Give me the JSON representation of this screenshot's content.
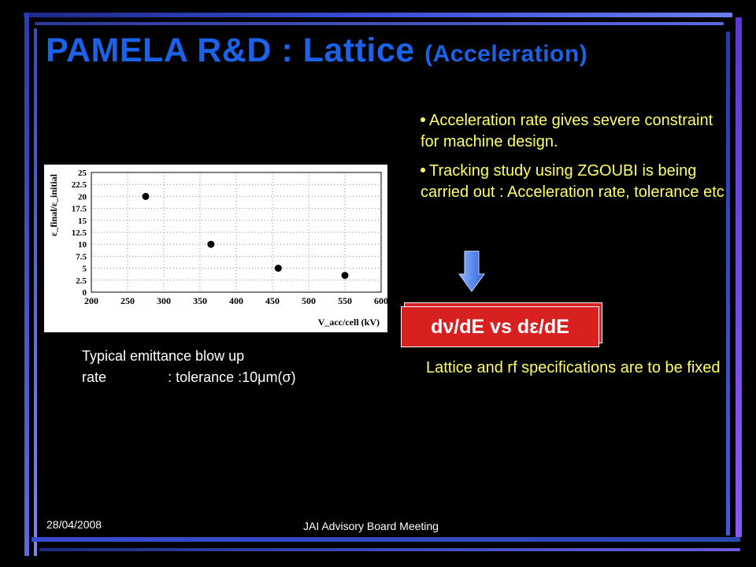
{
  "slide": {
    "title_main": "PAMELA R&D : Lattice",
    "title_sub": "(Acceleration)",
    "bullets": [
      "Acceleration rate gives severe constraint for machine design.",
      "Tracking study using ZGOUBI is being carried out : Acceleration rate, tolerance etc"
    ],
    "box_label": "dν/dE vs dε/dE",
    "note": "Lattice and rf specifications are to be fixed",
    "caption_line1": "Typical emittance blow up",
    "caption_line2_a": "rate",
    "caption_line2_b": ": tolerance :10μm(σ)",
    "footer_date": "28/04/2008",
    "footer_center": "JAI Advisory Board Meeting"
  },
  "colors": {
    "title": "#1a63e8",
    "bullet_text": "#ffff66",
    "box_fill": "#d92020",
    "arrow": "#5b8cf0"
  },
  "chart_data": {
    "type": "scatter",
    "x": [
      275,
      365,
      458,
      550
    ],
    "y": [
      20,
      10,
      5,
      3.5
    ],
    "xlabel": "V_acc/cell (kV)",
    "ylabel": "ε_final/ε_initial",
    "xlim": [
      200,
      600
    ],
    "ylim": [
      0,
      25
    ],
    "x_ticks": [
      "200",
      "250",
      "300",
      "350",
      "400",
      "450",
      "500",
      "550",
      "600"
    ],
    "y_ticks": [
      "0",
      "2.5",
      "5",
      "7.5",
      "10",
      "12.5",
      "15",
      "17.5",
      "20",
      "22.5",
      "25"
    ],
    "grid": true
  }
}
